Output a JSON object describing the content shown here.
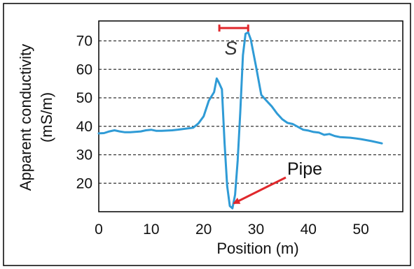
{
  "chart_data": {
    "type": "line",
    "title": "",
    "xlabel": "Position (m)",
    "ylabel_line1": "Apparent conductivity",
    "ylabel_line2": "(mS/m)",
    "xlim": [
      0,
      58
    ],
    "ylim": [
      10,
      77
    ],
    "x_ticks": [
      0,
      10,
      20,
      30,
      40,
      50
    ],
    "y_ticks": [
      20,
      30,
      40,
      50,
      60,
      70
    ],
    "grid": "horizontal-dashed",
    "series": [
      {
        "color": "#2f9bd6",
        "points": [
          [
            0,
            37.5
          ],
          [
            1,
            37.6
          ],
          [
            2,
            38.2
          ],
          [
            3,
            38.6
          ],
          [
            4,
            38.2
          ],
          [
            5,
            37.9
          ],
          [
            6,
            37.9
          ],
          [
            8,
            38.2
          ],
          [
            9,
            38.6
          ],
          [
            10,
            38.8
          ],
          [
            11,
            38.4
          ],
          [
            12,
            38.4
          ],
          [
            14,
            38.6
          ],
          [
            16,
            39.0
          ],
          [
            18,
            39.5
          ],
          [
            19,
            41
          ],
          [
            20,
            43.5
          ],
          [
            21,
            49
          ],
          [
            22,
            52
          ],
          [
            22.5,
            56.8
          ],
          [
            23,
            55
          ],
          [
            23.5,
            53
          ],
          [
            24,
            34
          ],
          [
            24.5,
            19
          ],
          [
            25,
            12
          ],
          [
            25.5,
            11.2
          ],
          [
            26,
            16
          ],
          [
            26.5,
            28
          ],
          [
            27,
            45
          ],
          [
            27.5,
            65
          ],
          [
            28,
            72.5
          ],
          [
            28.5,
            73
          ],
          [
            29,
            70.5
          ],
          [
            30,
            61
          ],
          [
            31,
            51
          ],
          [
            32,
            49
          ],
          [
            33,
            47
          ],
          [
            34,
            44.5
          ],
          [
            35,
            42.5
          ],
          [
            36,
            41.2
          ],
          [
            37,
            40.8
          ],
          [
            38,
            39.8
          ],
          [
            39,
            38.8
          ],
          [
            40,
            38.5
          ],
          [
            41,
            38
          ],
          [
            42,
            37.8
          ],
          [
            43,
            37
          ],
          [
            44,
            37.3
          ],
          [
            45,
            36.6
          ],
          [
            46,
            36.2
          ],
          [
            48,
            36
          ],
          [
            50,
            35.5
          ],
          [
            52,
            34.8
          ],
          [
            54,
            34
          ]
        ]
      }
    ],
    "annotations": {
      "pipe_label": "Pipe",
      "pipe_target": [
        25,
        12
      ],
      "s_label": "S",
      "s_range": [
        23,
        28.5
      ],
      "s_y": 74.5
    },
    "colors": {
      "line": "#2f9bd6",
      "annotation": "#e0282c",
      "grid": "#333333"
    }
  }
}
